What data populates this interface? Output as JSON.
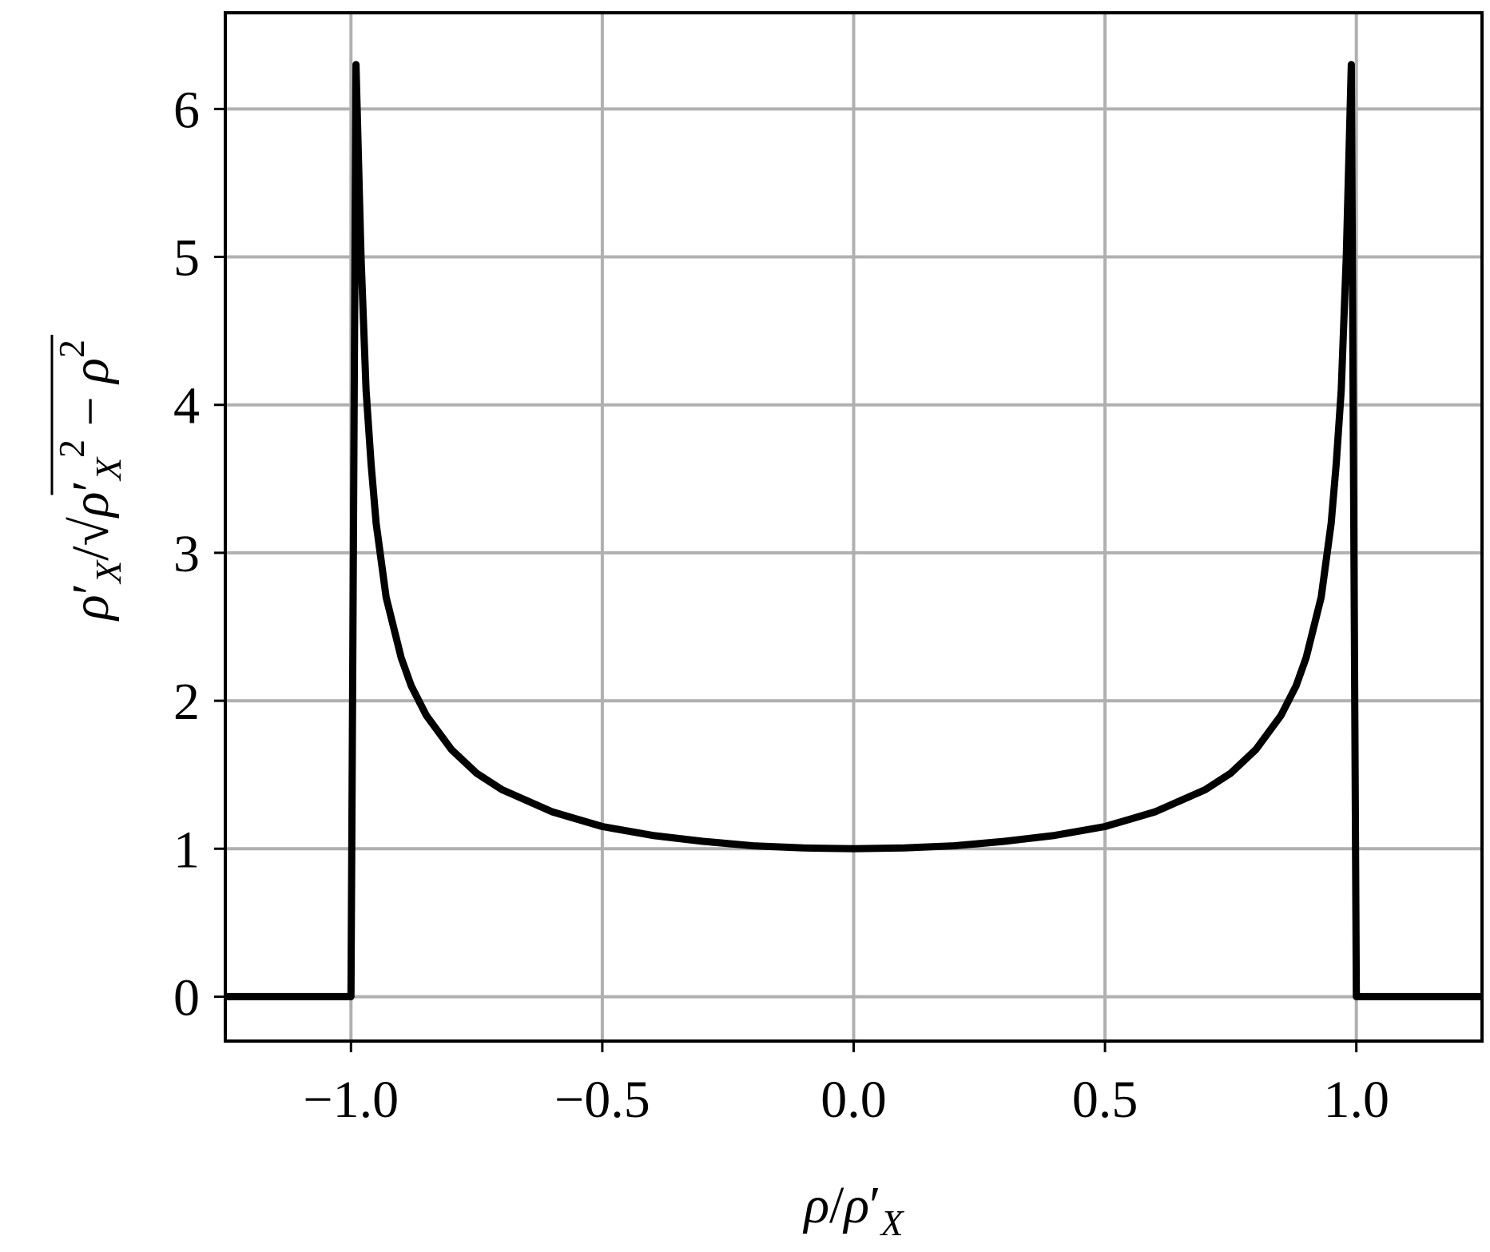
{
  "chart_data": {
    "type": "line",
    "title": "",
    "xlabel": "ρ/ρ′X",
    "ylabel": "ρ′X/√(ρ′X² − ρ²)",
    "xlim": [
      -1.25,
      1.25
    ],
    "ylim": [
      -0.3,
      6.65
    ],
    "grid": true,
    "x_ticks": [
      -1.0,
      -0.5,
      0.0,
      0.5,
      1.0
    ],
    "x_tick_labels": [
      "−1.0",
      "−0.5",
      "0.0",
      "0.5",
      "1.0"
    ],
    "y_ticks": [
      0,
      1,
      2,
      3,
      4,
      5,
      6
    ],
    "y_tick_labels": [
      "0",
      "1",
      "2",
      "3",
      "4",
      "5",
      "6"
    ],
    "series": [
      {
        "color": "#000000",
        "x": [
          -1.25,
          -1.2,
          -1.1,
          -1.0,
          -0.99,
          -0.98,
          -0.97,
          -0.96,
          -0.95,
          -0.93,
          -0.9,
          -0.88,
          -0.85,
          -0.8,
          -0.75,
          -0.7,
          -0.6,
          -0.5,
          -0.4,
          -0.3,
          -0.2,
          -0.1,
          0.0,
          0.1,
          0.2,
          0.3,
          0.4,
          0.5,
          0.6,
          0.7,
          0.75,
          0.8,
          0.85,
          0.88,
          0.9,
          0.93,
          0.95,
          0.96,
          0.97,
          0.98,
          0.99,
          1.0,
          1.1,
          1.2,
          1.25
        ],
        "y": [
          0,
          0,
          0,
          0,
          6.3,
          5.0,
          4.1,
          3.6,
          3.2,
          2.7,
          2.29,
          2.1,
          1.9,
          1.67,
          1.51,
          1.4,
          1.25,
          1.15,
          1.09,
          1.05,
          1.02,
          1.005,
          1.0,
          1.005,
          1.02,
          1.05,
          1.09,
          1.15,
          1.25,
          1.4,
          1.51,
          1.67,
          1.9,
          2.1,
          2.29,
          2.7,
          3.2,
          3.6,
          4.1,
          5.0,
          6.3,
          0,
          0,
          0,
          0
        ]
      }
    ]
  },
  "colors": {
    "grid": "#b0b0b0",
    "line": "#000000",
    "frame": "#000000"
  }
}
